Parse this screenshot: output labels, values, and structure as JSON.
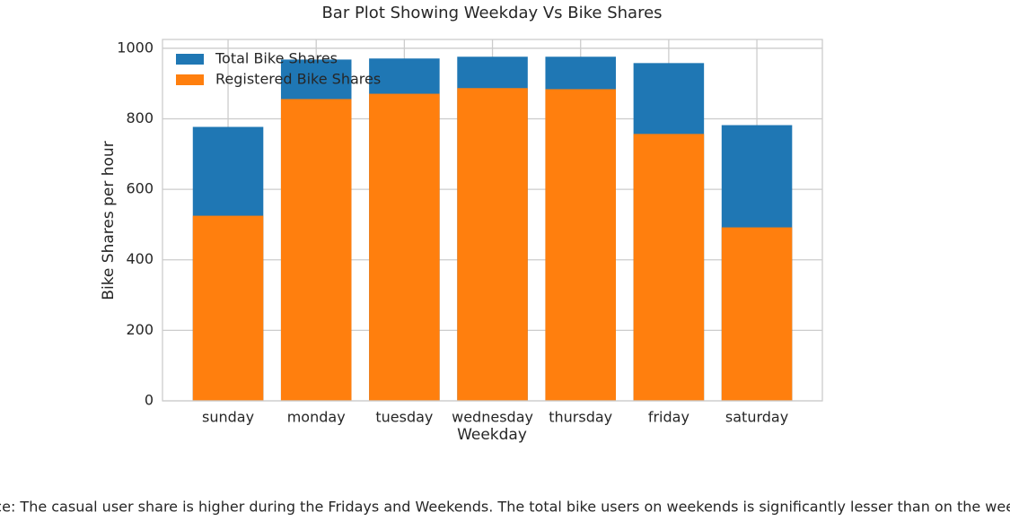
{
  "chart_data": {
    "type": "bar",
    "title": "Bar Plot Showing Weekday Vs Bike Shares",
    "x_label": "Weekday",
    "y_label": "Bike Shares per hour",
    "categories": [
      "sunday",
      "monday",
      "tuesday",
      "wednesday",
      "thursday",
      "friday",
      "saturday"
    ],
    "series": [
      {
        "name": "Total Bike Shares",
        "color": "#1f77b4",
        "values": [
          777,
          968,
          971,
          976,
          976,
          958,
          782
        ]
      },
      {
        "name": "Registered Bike Shares",
        "color": "#ff7f0e",
        "values": [
          525,
          856,
          871,
          887,
          884,
          757,
          492
        ]
      }
    ],
    "ylim": [
      0,
      1025
    ],
    "yticks": [
      0,
      200,
      400,
      600,
      800,
      1000
    ],
    "grid": true,
    "legend": "upper left",
    "note": "Inference: The casual user share is higher during the Fridays and Weekends. The total bike users on weekends is significantly lesser than on the week days."
  }
}
